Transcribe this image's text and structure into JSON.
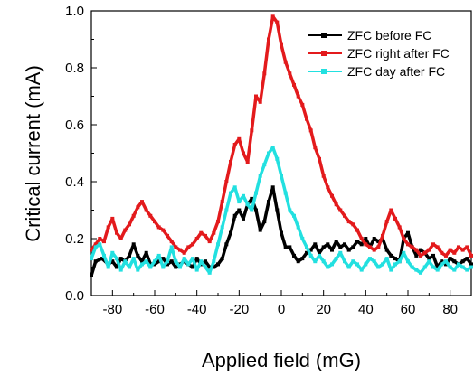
{
  "chart_data": {
    "type": "line",
    "xlabel": "Applied field (mG)",
    "ylabel": "Critical current (mA)",
    "xlim": [
      -90,
      90
    ],
    "ylim": [
      0.0,
      1.0
    ],
    "x_ticks": [
      "-80",
      "-60",
      "-40",
      "-20",
      "0",
      "20",
      "40",
      "60",
      "80"
    ],
    "y_ticks": [
      "0.0",
      "0.2",
      "0.4",
      "0.6",
      "0.8",
      "1.0"
    ],
    "grid": false,
    "legend_position": "top-right",
    "series": [
      {
        "name": "ZFC before FC",
        "color": "#000000",
        "x": [
          -90,
          -88,
          -85,
          -82,
          -80,
          -78,
          -76,
          -74,
          -72,
          -70,
          -68,
          -66,
          -64,
          -62,
          -60,
          -58,
          -56,
          -54,
          -52,
          -50,
          -48,
          -46,
          -44,
          -42,
          -40,
          -38,
          -36,
          -34,
          -32,
          -30,
          -28,
          -26,
          -24,
          -22,
          -20,
          -18,
          -16,
          -14,
          -12,
          -10,
          -8,
          -6,
          -4,
          -2,
          0,
          2,
          4,
          6,
          8,
          10,
          12,
          14,
          16,
          18,
          20,
          22,
          24,
          26,
          28,
          30,
          32,
          34,
          36,
          38,
          40,
          42,
          44,
          46,
          48,
          50,
          52,
          54,
          56,
          58,
          60,
          62,
          64,
          66,
          68,
          70,
          72,
          74,
          76,
          78,
          80,
          82,
          84,
          86,
          88,
          90
        ],
        "y": [
          0.07,
          0.12,
          0.13,
          0.11,
          0.12,
          0.1,
          0.13,
          0.12,
          0.14,
          0.18,
          0.14,
          0.12,
          0.15,
          0.11,
          0.11,
          0.12,
          0.13,
          0.11,
          0.12,
          0.1,
          0.11,
          0.12,
          0.11,
          0.1,
          0.13,
          0.11,
          0.12,
          0.1,
          0.1,
          0.11,
          0.13,
          0.18,
          0.22,
          0.28,
          0.3,
          0.27,
          0.32,
          0.34,
          0.3,
          0.23,
          0.26,
          0.33,
          0.38,
          0.3,
          0.22,
          0.17,
          0.17,
          0.14,
          0.12,
          0.13,
          0.15,
          0.16,
          0.18,
          0.15,
          0.17,
          0.18,
          0.16,
          0.19,
          0.17,
          0.18,
          0.16,
          0.17,
          0.19,
          0.18,
          0.2,
          0.17,
          0.2,
          0.19,
          0.2,
          0.16,
          0.14,
          0.13,
          0.12,
          0.2,
          0.22,
          0.17,
          0.14,
          0.16,
          0.15,
          0.13,
          0.14,
          0.1,
          0.12,
          0.11,
          0.13,
          0.12,
          0.11,
          0.12,
          0.13,
          0.11
        ]
      },
      {
        "name": "ZFC right after FC",
        "color": "#e31a1c",
        "x": [
          -90,
          -88,
          -86,
          -84,
          -82,
          -80,
          -78,
          -76,
          -74,
          -72,
          -70,
          -68,
          -66,
          -64,
          -62,
          -60,
          -58,
          -56,
          -54,
          -52,
          -50,
          -48,
          -46,
          -44,
          -42,
          -40,
          -38,
          -36,
          -34,
          -32,
          -30,
          -28,
          -26,
          -24,
          -22,
          -20,
          -18,
          -16,
          -14,
          -12,
          -10,
          -8,
          -6,
          -4,
          -2,
          0,
          2,
          4,
          6,
          8,
          10,
          12,
          14,
          16,
          18,
          20,
          22,
          24,
          26,
          28,
          30,
          32,
          34,
          36,
          38,
          40,
          42,
          44,
          46,
          48,
          50,
          52,
          54,
          56,
          58,
          60,
          62,
          64,
          66,
          68,
          70,
          72,
          74,
          76,
          78,
          80,
          82,
          84,
          86,
          88,
          90
        ],
        "y": [
          0.16,
          0.18,
          0.2,
          0.19,
          0.24,
          0.27,
          0.22,
          0.2,
          0.23,
          0.25,
          0.28,
          0.31,
          0.33,
          0.3,
          0.28,
          0.26,
          0.24,
          0.23,
          0.21,
          0.19,
          0.17,
          0.16,
          0.15,
          0.17,
          0.18,
          0.2,
          0.22,
          0.21,
          0.19,
          0.22,
          0.26,
          0.33,
          0.4,
          0.47,
          0.53,
          0.55,
          0.5,
          0.47,
          0.58,
          0.7,
          0.68,
          0.78,
          0.9,
          0.98,
          0.96,
          0.88,
          0.82,
          0.78,
          0.74,
          0.7,
          0.67,
          0.62,
          0.58,
          0.52,
          0.48,
          0.42,
          0.38,
          0.35,
          0.32,
          0.3,
          0.28,
          0.26,
          0.25,
          0.23,
          0.2,
          0.18,
          0.17,
          0.16,
          0.17,
          0.21,
          0.26,
          0.3,
          0.27,
          0.24,
          0.2,
          0.18,
          0.17,
          0.16,
          0.14,
          0.15,
          0.16,
          0.18,
          0.17,
          0.15,
          0.14,
          0.16,
          0.15,
          0.17,
          0.16,
          0.17,
          0.14
        ]
      },
      {
        "name": "ZFC day after FC",
        "color": "#22e0e0",
        "x": [
          -90,
          -88,
          -86,
          -84,
          -82,
          -80,
          -78,
          -76,
          -74,
          -72,
          -70,
          -68,
          -66,
          -64,
          -62,
          -60,
          -58,
          -56,
          -54,
          -52,
          -50,
          -48,
          -46,
          -44,
          -42,
          -40,
          -38,
          -36,
          -34,
          -32,
          -30,
          -28,
          -26,
          -24,
          -22,
          -20,
          -18,
          -16,
          -14,
          -12,
          -10,
          -8,
          -6,
          -4,
          -2,
          0,
          2,
          4,
          6,
          8,
          10,
          12,
          14,
          16,
          18,
          20,
          22,
          24,
          26,
          28,
          30,
          32,
          34,
          36,
          38,
          40,
          42,
          44,
          46,
          48,
          50,
          52,
          54,
          56,
          58,
          60,
          62,
          64,
          66,
          68,
          70,
          72,
          74,
          76,
          78,
          80,
          82,
          84,
          86,
          88,
          90
        ],
        "y": [
          0.13,
          0.17,
          0.18,
          0.14,
          0.1,
          0.15,
          0.13,
          0.09,
          0.12,
          0.1,
          0.13,
          0.09,
          0.11,
          0.12,
          0.1,
          0.12,
          0.14,
          0.1,
          0.12,
          0.17,
          0.12,
          0.1,
          0.13,
          0.11,
          0.13,
          0.09,
          0.12,
          0.1,
          0.08,
          0.12,
          0.18,
          0.24,
          0.3,
          0.36,
          0.38,
          0.33,
          0.35,
          0.32,
          0.3,
          0.36,
          0.42,
          0.46,
          0.5,
          0.52,
          0.48,
          0.42,
          0.36,
          0.3,
          0.28,
          0.24,
          0.2,
          0.17,
          0.14,
          0.12,
          0.14,
          0.12,
          0.1,
          0.11,
          0.13,
          0.15,
          0.12,
          0.1,
          0.12,
          0.11,
          0.09,
          0.11,
          0.13,
          0.12,
          0.1,
          0.11,
          0.13,
          0.09,
          0.11,
          0.12,
          0.15,
          0.12,
          0.1,
          0.09,
          0.08,
          0.1,
          0.12,
          0.1,
          0.09,
          0.11,
          0.12,
          0.1,
          0.09,
          0.11,
          0.1,
          0.09,
          0.1
        ]
      }
    ]
  }
}
